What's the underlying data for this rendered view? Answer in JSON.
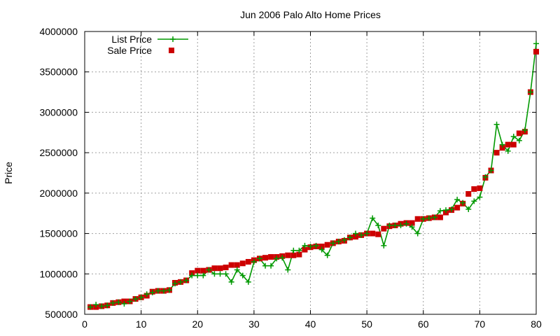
{
  "chart_data": {
    "type": "line",
    "title": "Jun 2006 Palo Alto Home Prices",
    "xlabel": "",
    "ylabel": "Price",
    "xlim": [
      0,
      80
    ],
    "ylim": [
      500000,
      4000000
    ],
    "xticks": [
      0,
      10,
      20,
      30,
      40,
      50,
      60,
      70,
      80
    ],
    "yticks": [
      500000,
      1000000,
      1500000,
      2000000,
      2500000,
      3000000,
      3500000,
      4000000
    ],
    "grid": true,
    "legend_position": "top-left",
    "series": [
      {
        "name": "List Price",
        "style": "line-with-plus-markers",
        "color": "#009900",
        "x": [
          1,
          2,
          3,
          4,
          5,
          6,
          7,
          8,
          9,
          10,
          11,
          12,
          13,
          14,
          15,
          16,
          17,
          18,
          19,
          20,
          21,
          22,
          23,
          24,
          25,
          26,
          27,
          28,
          29,
          30,
          31,
          32,
          33,
          34,
          35,
          36,
          37,
          38,
          39,
          40,
          41,
          42,
          43,
          44,
          45,
          46,
          47,
          48,
          49,
          50,
          51,
          52,
          53,
          54,
          55,
          56,
          57,
          58,
          59,
          60,
          61,
          62,
          63,
          64,
          65,
          66,
          67,
          68,
          69,
          70,
          71,
          72,
          73,
          74,
          75,
          76,
          77,
          78,
          79,
          80
        ],
        "y": [
          590000,
          620000,
          600000,
          610000,
          640000,
          650000,
          630000,
          660000,
          690000,
          710000,
          750000,
          770000,
          790000,
          790000,
          800000,
          880000,
          900000,
          920000,
          980000,
          980000,
          980000,
          1050000,
          1000000,
          1000000,
          1000000,
          900000,
          1050000,
          980000,
          900000,
          1150000,
          1190000,
          1100000,
          1100000,
          1190000,
          1200000,
          1050000,
          1290000,
          1290000,
          1350000,
          1340000,
          1350000,
          1300000,
          1230000,
          1380000,
          1400000,
          1420000,
          1450000,
          1500000,
          1480000,
          1500000,
          1690000,
          1600000,
          1350000,
          1600000,
          1600000,
          1600000,
          1620000,
          1580000,
          1500000,
          1680000,
          1690000,
          1700000,
          1780000,
          1790000,
          1800000,
          1920000,
          1880000,
          1800000,
          1900000,
          1950000,
          2200000,
          2280000,
          2850000,
          2600000,
          2520000,
          2700000,
          2650000,
          2780000,
          3250000,
          3850000
        ]
      },
      {
        "name": "Sale Price",
        "style": "square-markers",
        "color": "#cc0000",
        "x": [
          1,
          2,
          3,
          4,
          5,
          6,
          7,
          8,
          9,
          10,
          11,
          12,
          13,
          14,
          15,
          16,
          17,
          18,
          19,
          20,
          21,
          22,
          23,
          24,
          25,
          26,
          27,
          28,
          29,
          30,
          31,
          32,
          33,
          34,
          35,
          36,
          37,
          38,
          39,
          40,
          41,
          42,
          43,
          44,
          45,
          46,
          47,
          48,
          49,
          50,
          51,
          52,
          53,
          54,
          55,
          56,
          57,
          58,
          59,
          60,
          61,
          62,
          63,
          64,
          65,
          66,
          67,
          68,
          69,
          70,
          71,
          72,
          73,
          74,
          75,
          76,
          77,
          78,
          79,
          80
        ],
        "y": [
          590000,
          590000,
          600000,
          610000,
          640000,
          650000,
          660000,
          660000,
          690000,
          710000,
          730000,
          780000,
          790000,
          790000,
          800000,
          890000,
          900000,
          920000,
          1010000,
          1040000,
          1040000,
          1050000,
          1070000,
          1070000,
          1080000,
          1110000,
          1110000,
          1130000,
          1150000,
          1170000,
          1190000,
          1200000,
          1210000,
          1210000,
          1220000,
          1230000,
          1230000,
          1240000,
          1300000,
          1330000,
          1340000,
          1340000,
          1360000,
          1380000,
          1400000,
          1410000,
          1450000,
          1460000,
          1480000,
          1500000,
          1500000,
          1490000,
          1560000,
          1590000,
          1600000,
          1620000,
          1630000,
          1630000,
          1680000,
          1680000,
          1690000,
          1700000,
          1700000,
          1760000,
          1790000,
          1820000,
          1870000,
          1990000,
          2050000,
          2060000,
          2190000,
          2280000,
          2500000,
          2560000,
          2600000,
          2600000,
          2740000,
          2760000,
          3250000,
          3750000
        ]
      }
    ]
  }
}
